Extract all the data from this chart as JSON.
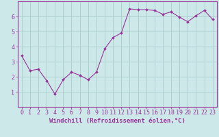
{
  "x": [
    0,
    1,
    2,
    3,
    4,
    5,
    6,
    7,
    8,
    9,
    10,
    11,
    12,
    13,
    14,
    15,
    16,
    17,
    18,
    19,
    20,
    21,
    22,
    23
  ],
  "y": [
    3.4,
    2.4,
    2.5,
    1.75,
    0.85,
    1.8,
    2.3,
    2.1,
    1.8,
    2.3,
    3.85,
    4.6,
    4.9,
    6.5,
    6.45,
    6.45,
    6.4,
    6.15,
    6.3,
    5.95,
    5.65,
    6.05,
    6.4,
    5.8
  ],
  "line_color": "#993399",
  "marker": "D",
  "marker_size": 2.0,
  "bg_color": "#cce8e8",
  "grid_color": "#aacccc",
  "axis_color": "#993399",
  "tick_color": "#993399",
  "xlabel": "Windchill (Refroidissement éolien,°C)",
  "ylabel": "",
  "xlim": [
    -0.5,
    23.5
  ],
  "ylim": [
    0,
    7
  ],
  "yticks": [
    1,
    2,
    3,
    4,
    5,
    6
  ],
  "xticks": [
    0,
    1,
    2,
    3,
    4,
    5,
    6,
    7,
    8,
    9,
    10,
    11,
    12,
    13,
    14,
    15,
    16,
    17,
    18,
    19,
    20,
    21,
    22,
    23
  ],
  "label_fontsize": 6.5,
  "tick_fontsize": 6.0
}
